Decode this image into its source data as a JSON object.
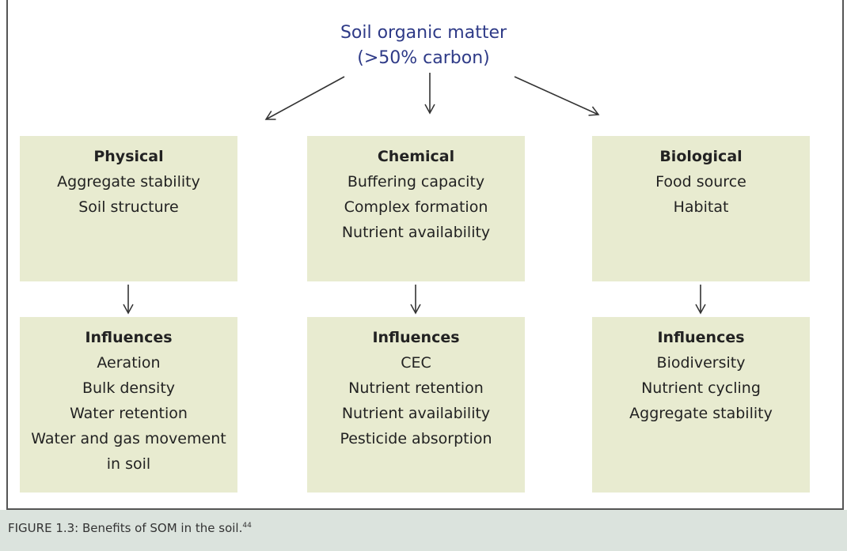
{
  "title_lines": [
    "Soil organic matter",
    "(>50% carbon)"
  ],
  "columns": [
    {
      "heading": "Physical",
      "items": [
        "Aggregate stability",
        "Soil structure"
      ],
      "influences_heading": "Influences",
      "influences": [
        "Aeration",
        "Bulk density",
        "Water retention",
        "Water and gas movement in soil"
      ]
    },
    {
      "heading": "Chemical",
      "items": [
        "Buffering capacity",
        "Complex formation",
        "Nutrient availability"
      ],
      "influences_heading": "Influences",
      "influences": [
        "CEC",
        "Nutrient retention",
        "Nutrient availability",
        "Pesticide absorption"
      ]
    },
    {
      "heading": "Biological",
      "items": [
        "Food source",
        "Habitat"
      ],
      "influences_heading": "Influences",
      "influences": [
        "Biodiversity",
        "Nutrient cycling",
        "Aggregate stability"
      ]
    }
  ],
  "caption": {
    "text": "FIGURE 1.3: Benefits of SOM in the soil.",
    "reference": "44"
  }
}
